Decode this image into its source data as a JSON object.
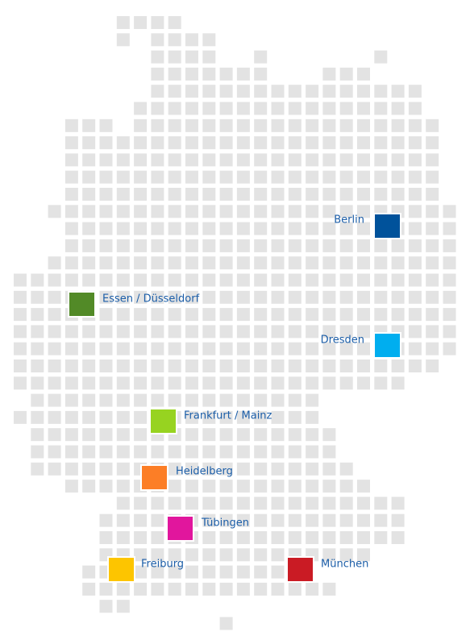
{
  "cities": [
    {
      "label": "Berlin",
      "color": "#00529b"
    },
    {
      "label": "Essen / Düsseldorf",
      "color": "#528a27"
    },
    {
      "label": "Dresden",
      "color": "#00aeef"
    },
    {
      "label": "Frankfurt / Mainz",
      "color": "#97d320"
    },
    {
      "label": "Heidelberg",
      "color": "#fc7e26"
    },
    {
      "label": "Tübingen",
      "color": "#e1169d"
    },
    {
      "label": "Freiburg",
      "color": "#fdc500"
    },
    {
      "label": "München",
      "color": "#ca1b24"
    }
  ]
}
